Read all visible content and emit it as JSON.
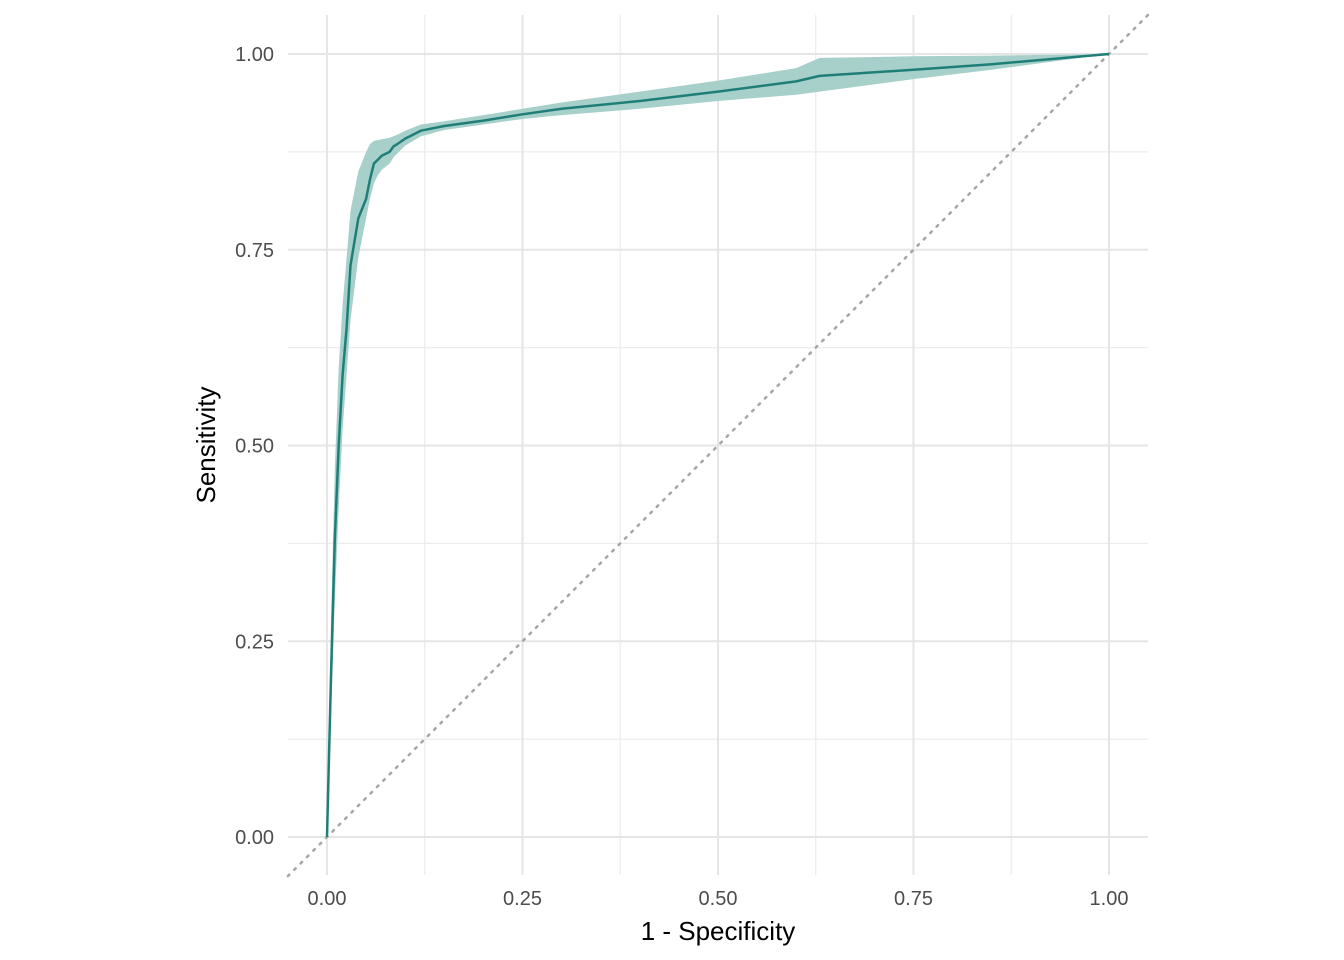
{
  "chart_data": {
    "type": "line",
    "title": "",
    "xlabel": "1 - Specificity",
    "ylabel": "Sensitivity",
    "xlim": [
      -0.05,
      1.05
    ],
    "ylim": [
      -0.05,
      1.05
    ],
    "grid": true,
    "legend": "none",
    "x_ticks": [
      "0.00",
      "0.25",
      "0.50",
      "0.75",
      "1.00"
    ],
    "y_ticks": [
      "0.00",
      "0.25",
      "0.50",
      "0.75",
      "1.00"
    ],
    "colors": {
      "line": "#1f7f78",
      "band": "#a7d0cb",
      "diagonal": "#a6a6a6",
      "grid": "#e5e5e5"
    },
    "series": [
      {
        "x": [
          0.0,
          0.005,
          0.01,
          0.015,
          0.02,
          0.025,
          0.03,
          0.04,
          0.05,
          0.055,
          0.06,
          0.065,
          0.07,
          0.08,
          0.085,
          0.09,
          0.1,
          0.12,
          0.15,
          0.2,
          0.25,
          0.3,
          0.4,
          0.5,
          0.6,
          0.63,
          0.75,
          0.85,
          1.0
        ],
        "y": [
          0.0,
          0.2,
          0.38,
          0.5,
          0.59,
          0.65,
          0.73,
          0.79,
          0.815,
          0.84,
          0.86,
          0.865,
          0.87,
          0.875,
          0.882,
          0.885,
          0.892,
          0.902,
          0.908,
          0.915,
          0.923,
          0.93,
          0.94,
          0.952,
          0.965,
          0.972,
          0.98,
          0.987,
          1.0
        ],
        "lower": [
          0.0,
          0.15,
          0.3,
          0.42,
          0.52,
          0.59,
          0.66,
          0.74,
          0.79,
          0.815,
          0.835,
          0.845,
          0.852,
          0.86,
          0.868,
          0.873,
          0.883,
          0.895,
          0.903,
          0.91,
          0.917,
          0.922,
          0.93,
          0.94,
          0.948,
          0.952,
          0.968,
          0.98,
          1.0
        ],
        "upper": [
          0.0,
          0.27,
          0.47,
          0.6,
          0.68,
          0.74,
          0.8,
          0.85,
          0.875,
          0.885,
          0.889,
          0.89,
          0.891,
          0.893,
          0.895,
          0.897,
          0.902,
          0.91,
          0.914,
          0.922,
          0.93,
          0.938,
          0.952,
          0.966,
          0.982,
          0.995,
          0.997,
          0.998,
          1.0
        ]
      }
    ]
  }
}
